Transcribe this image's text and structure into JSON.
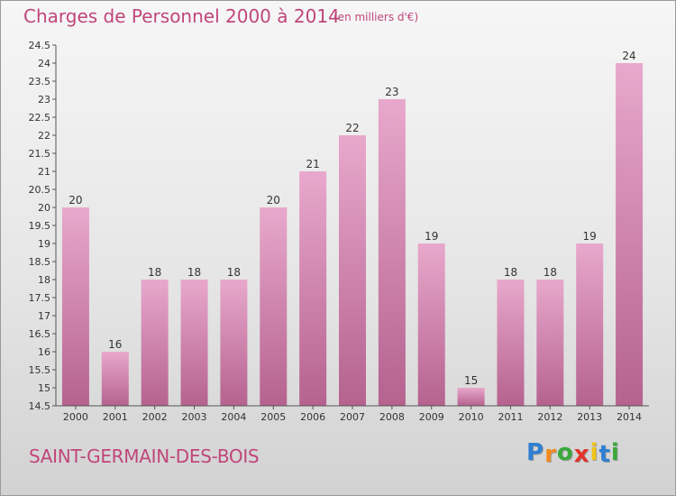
{
  "header": {
    "title": "Charges de Personnel 2000 à 2014",
    "subtitle": "(en milliers d'€)"
  },
  "footer": {
    "commune": "SAINT-GERMAIN-DES-BOIS",
    "logo": {
      "text": "Proxiti",
      "letters": [
        "P",
        "r",
        "o",
        "x",
        "i",
        "t",
        "i"
      ],
      "colors": [
        "#2f7fd3",
        "#f08a1e",
        "#3aa83a",
        "#e2332a",
        "#f0c419",
        "#2f7fd3",
        "#3aa83a"
      ]
    }
  },
  "chart_data": {
    "type": "bar",
    "title": "Charges de Personnel 2000 à 2014",
    "subtitle": "(en milliers d'€)",
    "xlabel": "",
    "ylabel": "",
    "categories": [
      "2000",
      "2001",
      "2002",
      "2003",
      "2004",
      "2005",
      "2006",
      "2007",
      "2008",
      "2009",
      "2010",
      "2011",
      "2012",
      "2013",
      "2014"
    ],
    "values": [
      20,
      16,
      18,
      18,
      18,
      20,
      21,
      22,
      23,
      19,
      15,
      18,
      18,
      19,
      24
    ],
    "ylim": [
      14.5,
      24.5
    ],
    "yticks": [
      "14.5",
      "15",
      "15.5",
      "16",
      "16.5",
      "17",
      "17.5",
      "18",
      "18.5",
      "19",
      "19.5",
      "20",
      "20.5",
      "21",
      "21.5",
      "22",
      "22.5",
      "23",
      "23.5",
      "24",
      "24.5"
    ],
    "grid": false,
    "bar_color_top": "#e8a8cc",
    "bar_color_bottom": "#b5628f"
  }
}
